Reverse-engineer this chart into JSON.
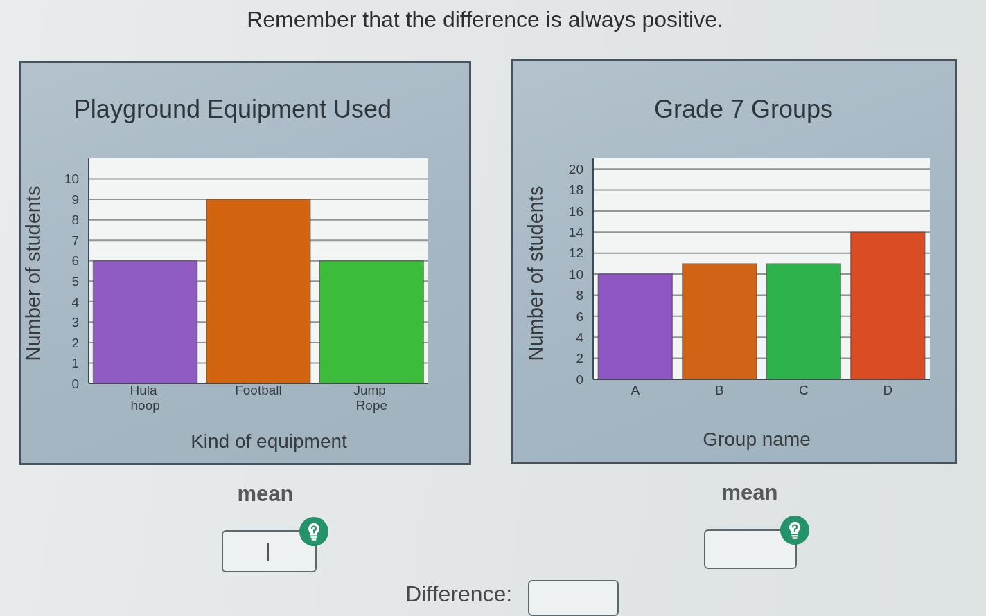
{
  "chart_data": [
    {
      "type": "other",
      "title": "Remember that the difference is always positive."
    },
    {
      "type": "bar",
      "title": "Playground Equipment Used",
      "xlabel": "Kind of equipment",
      "ylabel": "Number of students",
      "categories": [
        "Hula hoop",
        "Football",
        "Jump Rope"
      ],
      "values": [
        6,
        9,
        6
      ],
      "colors": [
        "#8e5cc2",
        "#d2640f",
        "#3dbb3a"
      ],
      "ylim": [
        0,
        11
      ],
      "yticks": [
        0,
        1,
        2,
        3,
        4,
        5,
        6,
        7,
        8,
        9,
        10
      ],
      "grid": "y",
      "annotations": [
        "mean"
      ]
    },
    {
      "type": "bar",
      "title": "Grade 7 Groups",
      "xlabel": "Group name",
      "ylabel": "Number of students",
      "categories": [
        "A",
        "B",
        "C",
        "D"
      ],
      "values": [
        10,
        11,
        11,
        14
      ],
      "colors": [
        "#8d56c2",
        "#cf6416",
        "#2eb34c",
        "#d94c24"
      ],
      "ylim": [
        0,
        21
      ],
      "yticks": [
        0,
        2,
        4,
        6,
        8,
        10,
        12,
        14,
        16,
        18,
        20
      ],
      "grid": "y",
      "annotations": [
        "mean"
      ]
    },
    {
      "type": "other",
      "annotations": [
        "Difference:"
      ]
    }
  ]
}
